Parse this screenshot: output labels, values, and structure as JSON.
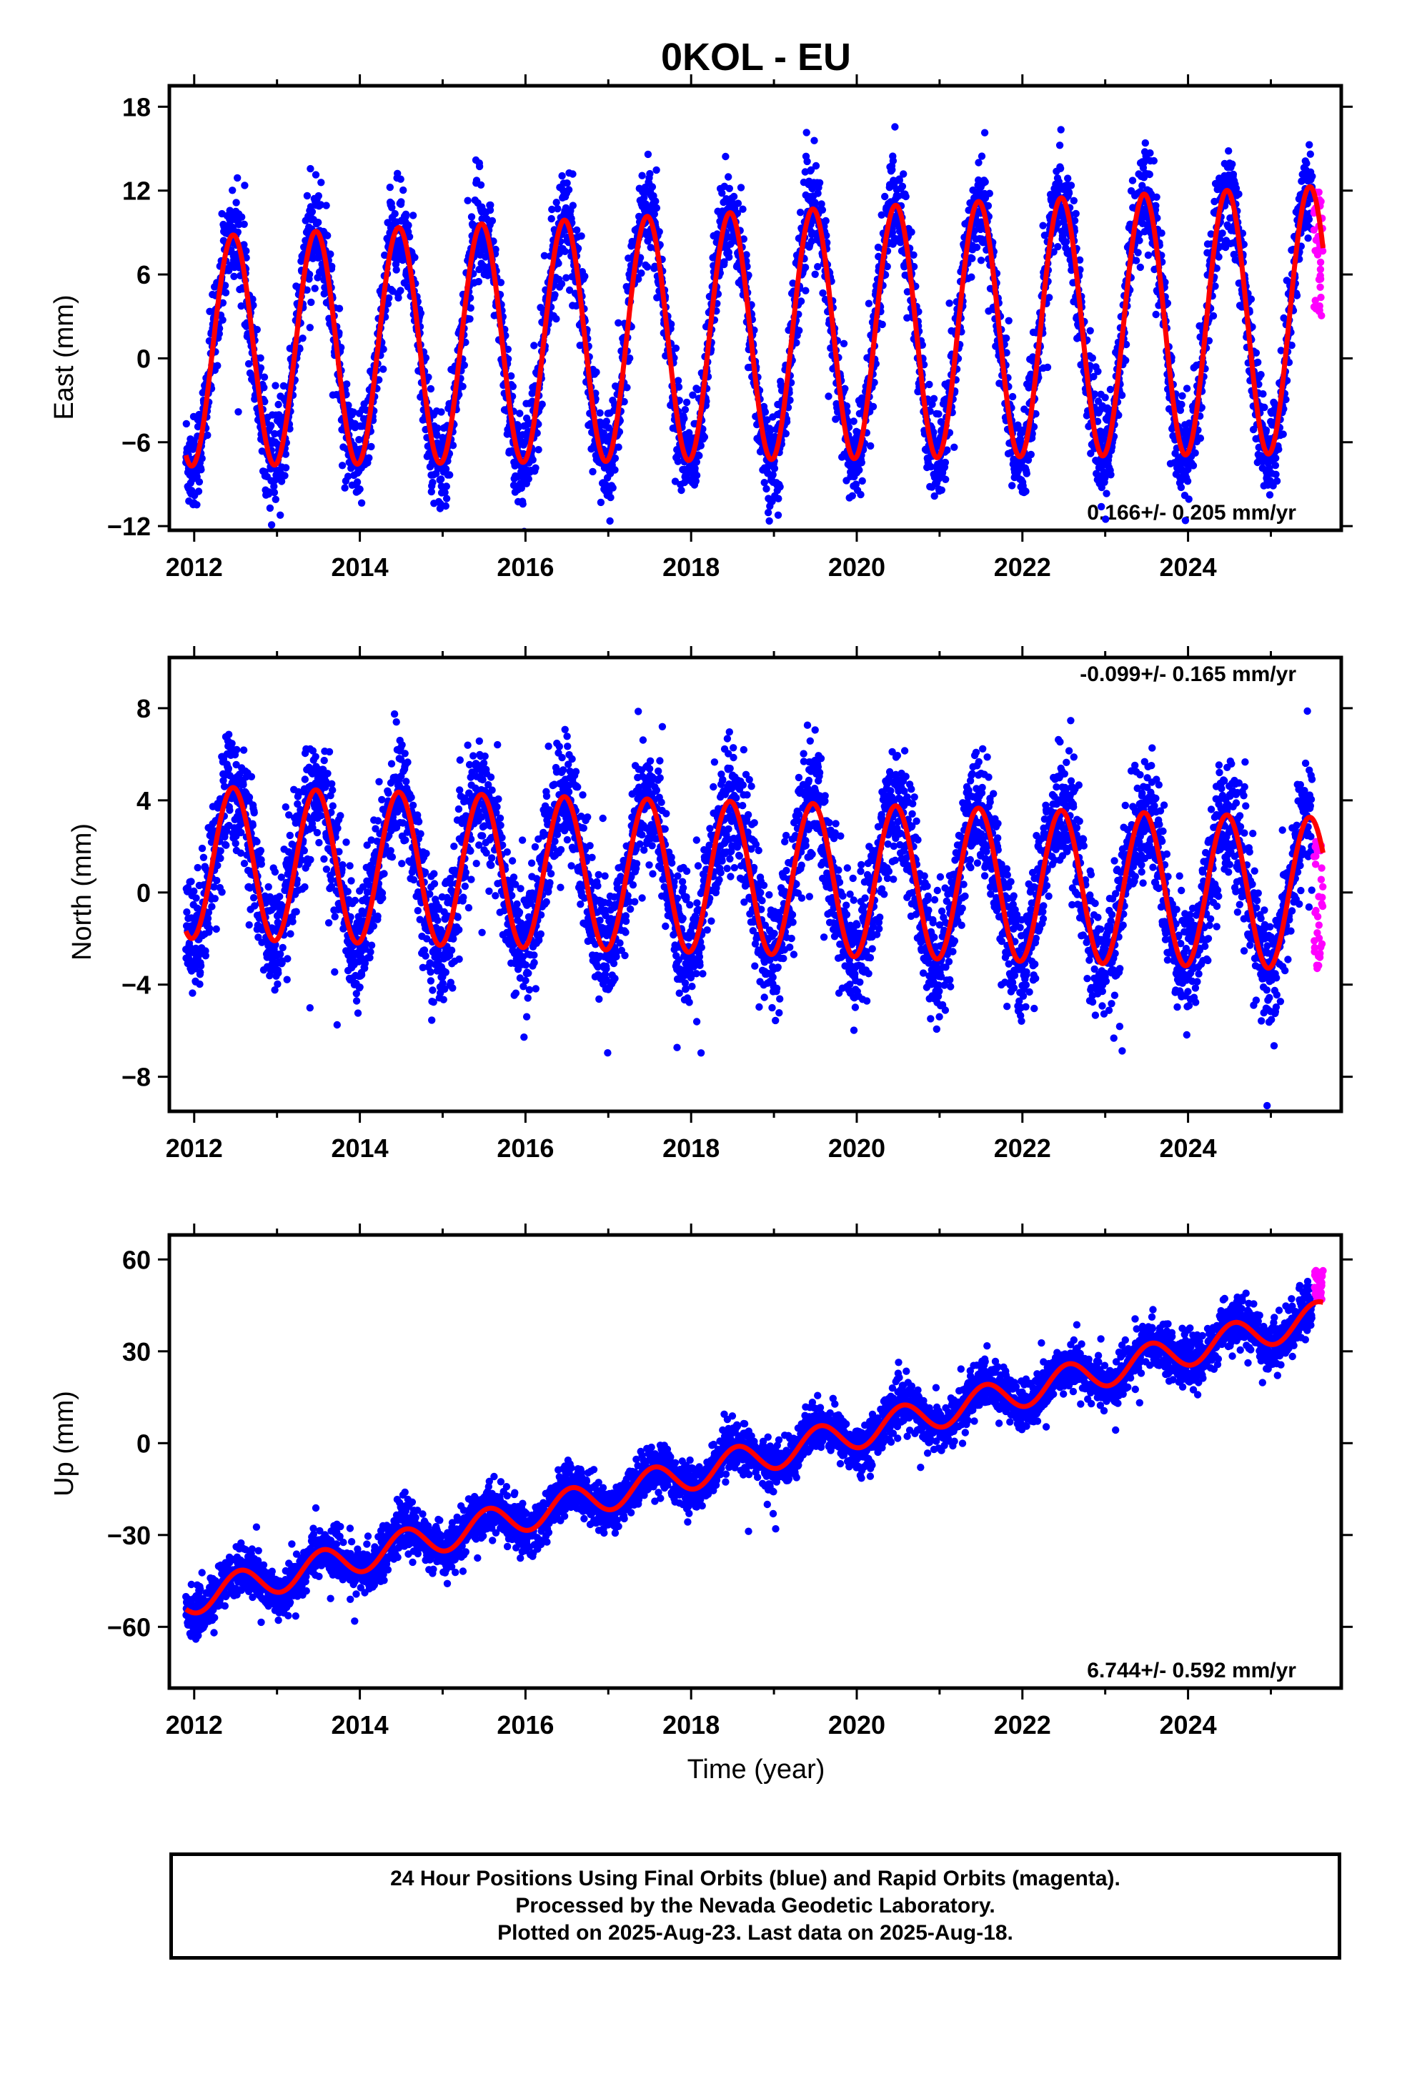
{
  "title": "0KOL - EU",
  "xlabel": "Time (year)",
  "footer": {
    "line1": "24 Hour Positions Using Final Orbits (blue) and Rapid Orbits (magenta).",
    "line2": "Processed by the Nevada Geodetic Laboratory.",
    "line3": "Plotted on 2025-Aug-23. Last data on 2025-Aug-18."
  },
  "colors": {
    "final": "#0000ff",
    "rapid": "#ff00ff",
    "model": "#ff0000",
    "frame": "#000000"
  },
  "chart_data": [
    {
      "type": "scatter",
      "ylabel": "East (mm)",
      "rate_text": "0.166+/- 0.205 mm/yr",
      "rate_position": "bottom-right",
      "xlim": [
        2011.7,
        2025.85
      ],
      "ylim": [
        -12.3,
        19.5
      ],
      "xticks": [
        2012,
        2014,
        2016,
        2018,
        2020,
        2022,
        2024
      ],
      "yticks": [
        -12,
        -6,
        0,
        6,
        12,
        18
      ],
      "model": {
        "offset": 0.5,
        "trend": 0.166,
        "amplitude": 8.2,
        "amplitude_growth": 0.1,
        "peak_phase": 0.47
      },
      "series": [
        {
          "kind": "final",
          "x_start": 2011.9,
          "x_end": 2025.5,
          "scatter_sd": 1.7
        },
        {
          "kind": "rapid",
          "x_start": 2025.52,
          "x_end": 2025.63,
          "y_min": 3.0,
          "y_max": 12.0
        }
      ]
    },
    {
      "type": "scatter",
      "ylabel": "North (mm)",
      "rate_text": "-0.099+/- 0.165 mm/yr",
      "rate_position": "top-right",
      "xlim": [
        2011.7,
        2025.85
      ],
      "ylim": [
        -9.5,
        10.2
      ],
      "xticks": [
        2012,
        2014,
        2016,
        2018,
        2020,
        2022,
        2024
      ],
      "yticks": [
        -8,
        -4,
        0,
        4,
        8
      ],
      "model": {
        "offset": 1.3,
        "trend": -0.099,
        "amplitude": 3.3,
        "amplitude_growth": 0.0,
        "peak_phase": 0.47
      },
      "series": [
        {
          "kind": "final",
          "x_start": 2011.9,
          "x_end": 2025.5,
          "scatter_sd": 1.3
        },
        {
          "kind": "rapid",
          "x_start": 2025.52,
          "x_end": 2025.63,
          "y_min": -3.3,
          "y_max": 2.3
        }
      ]
    },
    {
      "type": "scatter",
      "ylabel": "Up (mm)",
      "rate_text": "6.744+/- 0.592 mm/yr",
      "rate_position": "bottom-right",
      "xlim": [
        2011.7,
        2025.85
      ],
      "ylim": [
        -80,
        68
      ],
      "xticks": [
        2012,
        2014,
        2016,
        2018,
        2020,
        2022,
        2024
      ],
      "yticks": [
        -60,
        -30,
        0,
        30,
        60
      ],
      "model": {
        "offset": -50.5,
        "trend": 6.744,
        "amplitude": 5.2,
        "amplitude_growth": 0.0,
        "peak_phase": 0.55
      },
      "series": [
        {
          "kind": "final",
          "x_start": 2011.9,
          "x_end": 2025.5,
          "scatter_sd": 3.8
        },
        {
          "kind": "rapid",
          "x_start": 2025.52,
          "x_end": 2025.63,
          "y_min": 46,
          "y_max": 57
        }
      ]
    }
  ]
}
